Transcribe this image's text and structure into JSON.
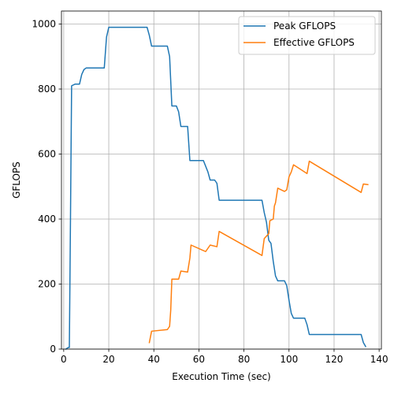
{
  "chart_data": {
    "type": "line",
    "title": "",
    "xlabel": "Execution Time (sec)",
    "ylabel": "GFLOPS",
    "xlim": [
      -1,
      141
    ],
    "ylim": [
      0,
      1040
    ],
    "xticks": [
      0,
      20,
      40,
      60,
      80,
      100,
      120,
      140
    ],
    "yticks": [
      0,
      200,
      400,
      600,
      800,
      1000
    ],
    "xtick_labels": [
      "0",
      "20",
      "40",
      "60",
      "80",
      "100",
      "120",
      "140"
    ],
    "ytick_labels": [
      "0",
      "200",
      "400",
      "600",
      "800",
      "1000"
    ],
    "grid": true,
    "legend_position": "top-right",
    "series": [
      {
        "name": "Peak GFLOPS",
        "color": "#1f77b4",
        "points": [
          [
            1,
            0
          ],
          [
            2,
            5
          ],
          [
            2.5,
            5
          ],
          [
            3,
            400
          ],
          [
            3.5,
            810
          ],
          [
            5,
            815
          ],
          [
            7,
            815
          ],
          [
            8,
            845
          ],
          [
            9,
            860
          ],
          [
            10,
            865
          ],
          [
            18,
            865
          ],
          [
            19,
            960
          ],
          [
            20,
            990
          ],
          [
            37,
            990
          ],
          [
            38,
            965
          ],
          [
            39,
            932
          ],
          [
            46,
            932
          ],
          [
            47,
            900
          ],
          [
            48,
            748
          ],
          [
            50,
            748
          ],
          [
            51,
            730
          ],
          [
            52,
            685
          ],
          [
            55,
            685
          ],
          [
            56,
            580
          ],
          [
            62,
            580
          ],
          [
            64,
            545
          ],
          [
            65,
            520
          ],
          [
            67,
            520
          ],
          [
            68,
            510
          ],
          [
            69,
            458
          ],
          [
            88,
            458
          ],
          [
            89,
            420
          ],
          [
            90,
            390
          ],
          [
            91,
            335
          ],
          [
            92,
            325
          ],
          [
            93,
            270
          ],
          [
            94,
            225
          ],
          [
            95,
            210
          ],
          [
            98,
            210
          ],
          [
            99,
            195
          ],
          [
            100,
            150
          ],
          [
            101,
            110
          ],
          [
            102,
            95
          ],
          [
            107,
            95
          ],
          [
            108,
            75
          ],
          [
            109,
            45
          ],
          [
            132,
            45
          ],
          [
            133,
            20
          ],
          [
            134,
            8
          ]
        ]
      },
      {
        "name": "Effective GFLOPS",
        "color": "#ff7f0e",
        "points": [
          [
            38,
            20
          ],
          [
            39,
            55
          ],
          [
            46,
            60
          ],
          [
            47,
            70
          ],
          [
            47.5,
            120
          ],
          [
            48,
            215
          ],
          [
            51,
            215
          ],
          [
            52,
            240
          ],
          [
            55,
            237
          ],
          [
            56,
            280
          ],
          [
            56.5,
            320
          ],
          [
            63,
            300
          ],
          [
            65,
            320
          ],
          [
            68,
            315
          ],
          [
            69,
            362
          ],
          [
            88,
            288
          ],
          [
            89,
            340
          ],
          [
            91,
            355
          ],
          [
            91.5,
            395
          ],
          [
            93,
            400
          ],
          [
            93.5,
            440
          ],
          [
            94,
            450
          ],
          [
            95,
            495
          ],
          [
            98,
            485
          ],
          [
            99,
            490
          ],
          [
            100,
            530
          ],
          [
            101,
            545
          ],
          [
            102,
            567
          ],
          [
            108,
            540
          ],
          [
            109,
            578
          ],
          [
            132,
            482
          ],
          [
            133,
            508
          ],
          [
            135,
            506
          ]
        ]
      }
    ]
  }
}
